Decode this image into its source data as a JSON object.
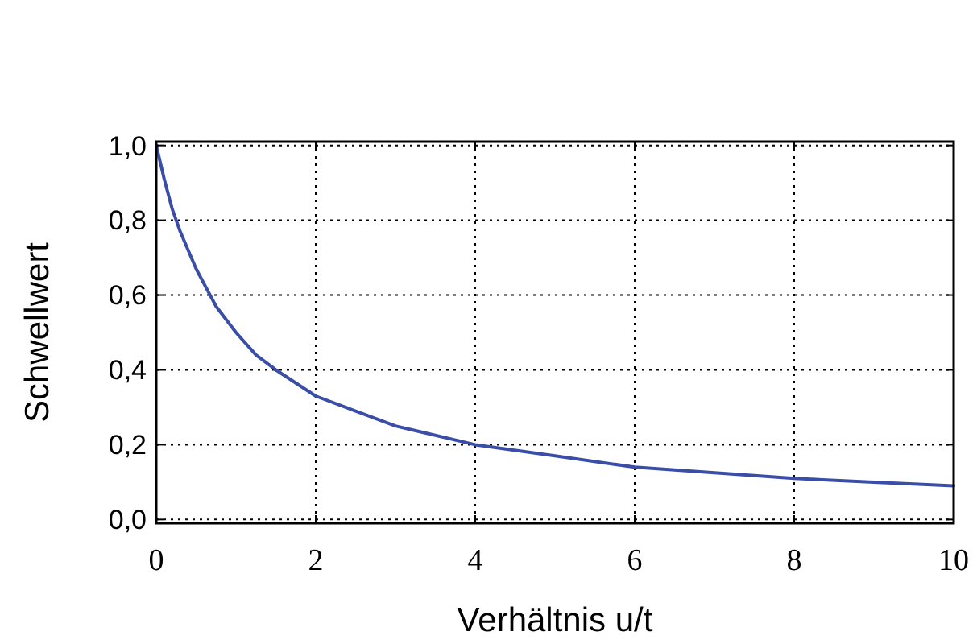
{
  "chart_data": {
    "type": "line",
    "xlabel": "Verhältnis u/t",
    "ylabel": "Schwellwert",
    "x": [
      0,
      0.1,
      0.2,
      0.3,
      0.5,
      0.75,
      1,
      1.25,
      1.5,
      2,
      2.5,
      3,
      4,
      5,
      6,
      7,
      8,
      9,
      10
    ],
    "series": [
      {
        "color": "#3a4ea8",
        "values": [
          1.0,
          0.91,
          0.83,
          0.77,
          0.67,
          0.57,
          0.5,
          0.44,
          0.4,
          0.33,
          0.29,
          0.25,
          0.2,
          0.17,
          0.14,
          0.125,
          0.11,
          0.1,
          0.09
        ]
      }
    ],
    "xlim": [
      0,
      10
    ],
    "xticks": [
      0,
      2,
      4,
      6,
      8,
      10
    ],
    "ylim": [
      -0.01,
      1.01
    ],
    "yticks": [
      {
        "value": 0,
        "label": "0,0"
      },
      {
        "value": 0.2,
        "label": "0,2"
      },
      {
        "value": 0.4,
        "label": "0,4"
      },
      {
        "value": 0.6,
        "label": "0,6"
      },
      {
        "value": 0.8,
        "label": "0,8"
      },
      {
        "value": 1,
        "label": "1,0"
      }
    ],
    "grid": true,
    "line_style": "solid",
    "marker": "none"
  }
}
